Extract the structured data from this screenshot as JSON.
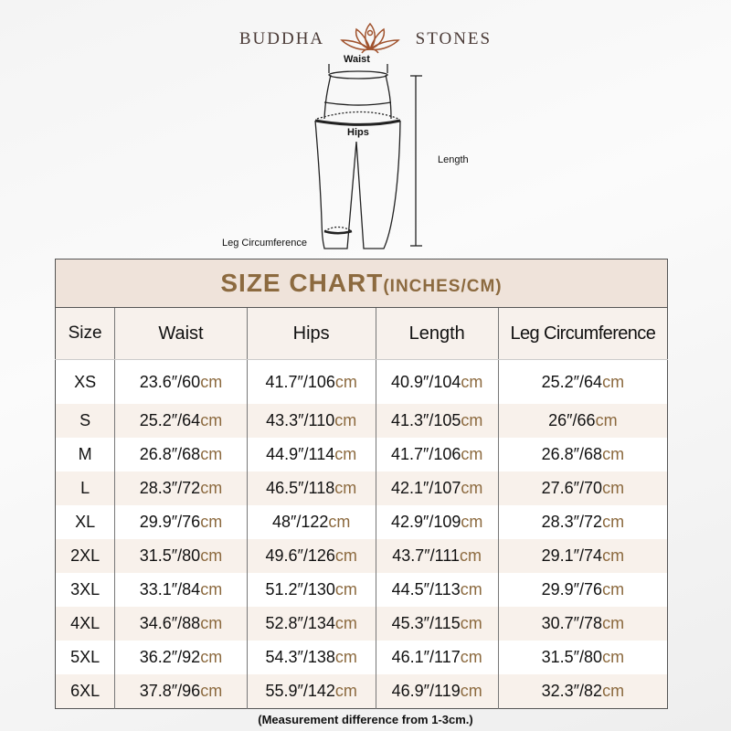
{
  "brand": {
    "left": "BUDDHA",
    "right": "STONES"
  },
  "diagram": {
    "waist": "Waist",
    "hips": "Hips",
    "length": "Length",
    "leg": "Leg Circumference"
  },
  "chart": {
    "title": "SIZE CHART",
    "title_unit": "(INCHES/CM)",
    "headers": [
      "Size",
      "Waist",
      "Hips",
      "Length",
      "Leg Circumference"
    ],
    "unit": "cm",
    "rows": [
      [
        "XS",
        "23.6″/60",
        "41.7″/106",
        "40.9″/104",
        "25.2″/64"
      ],
      [
        "S",
        "25.2″/64",
        "43.3″/110",
        "41.3″/105",
        "26″/66"
      ],
      [
        "M",
        "26.8″/68",
        "44.9″/114",
        "41.7″/106",
        "26.8″/68"
      ],
      [
        "L",
        "28.3″/72",
        "46.5″/118",
        "42.1″/107",
        "27.6″/70"
      ],
      [
        "XL",
        "29.9″/76",
        "48″/122",
        "42.9″/109",
        "28.3″/72"
      ],
      [
        "2XL",
        "31.5″/80",
        "49.6″/126",
        "43.7″/111",
        "29.1″/74"
      ],
      [
        "3XL",
        "33.1″/84",
        "51.2″/130",
        "44.5″/113",
        "29.9″/76"
      ],
      [
        "4XL",
        "34.6″/88",
        "52.8″/134",
        "45.3″/115",
        "30.7″/78"
      ],
      [
        "5XL",
        "36.2″/92",
        "54.3″/138",
        "46.1″/117",
        "31.5″/80"
      ],
      [
        "6XL",
        "37.8″/96",
        "55.9″/142",
        "46.9″/119",
        "32.3″/82"
      ]
    ]
  },
  "note": "(Measurement difference from 1-3cm.)",
  "colors": {
    "accent": "#8c6a3f",
    "title_bg": "#efe3da",
    "logo": "#a0522d"
  }
}
